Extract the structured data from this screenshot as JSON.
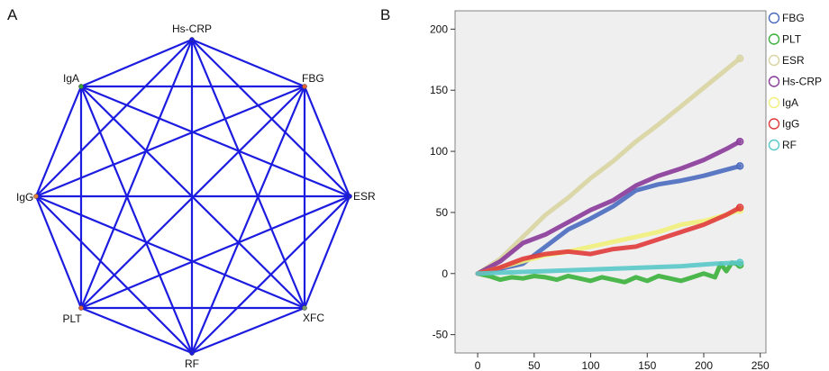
{
  "figure": {
    "panel_a_label": "A",
    "panel_b_label": "B"
  },
  "chart_data": [
    {
      "type": "network",
      "panel": "A",
      "edge_color": "#1c1ce0",
      "nodes": [
        {
          "id": "hscrp",
          "label": "Hs-CRP",
          "color": "#1c1ce0"
        },
        {
          "id": "fbg",
          "label": "FBG",
          "color": "#e0603a"
        },
        {
          "id": "esr",
          "label": "ESR",
          "color": "#1c1ce0"
        },
        {
          "id": "xfc",
          "label": "XFC",
          "color": "#7a9a6a"
        },
        {
          "id": "rf",
          "label": "RF",
          "color": "#1c1ce0"
        },
        {
          "id": "plt",
          "label": "PLT",
          "color": "#e0603a"
        },
        {
          "id": "igg",
          "label": "IgG",
          "color": "#e0803a"
        },
        {
          "id": "iga",
          "label": "IgA",
          "color": "#3aa03a"
        }
      ],
      "edges": [
        [
          "hscrp",
          "fbg"
        ],
        [
          "hscrp",
          "esr"
        ],
        [
          "hscrp",
          "xfc"
        ],
        [
          "hscrp",
          "rf"
        ],
        [
          "hscrp",
          "plt"
        ],
        [
          "hscrp",
          "igg"
        ],
        [
          "hscrp",
          "iga"
        ],
        [
          "fbg",
          "esr"
        ],
        [
          "fbg",
          "xfc"
        ],
        [
          "fbg",
          "rf"
        ],
        [
          "fbg",
          "plt"
        ],
        [
          "fbg",
          "igg"
        ],
        [
          "fbg",
          "iga"
        ],
        [
          "esr",
          "xfc"
        ],
        [
          "esr",
          "rf"
        ],
        [
          "esr",
          "plt"
        ],
        [
          "esr",
          "igg"
        ],
        [
          "esr",
          "iga"
        ],
        [
          "xfc",
          "rf"
        ],
        [
          "xfc",
          "plt"
        ],
        [
          "xfc",
          "igg"
        ],
        [
          "xfc",
          "iga"
        ],
        [
          "rf",
          "plt"
        ],
        [
          "rf",
          "igg"
        ],
        [
          "rf",
          "iga"
        ],
        [
          "plt",
          "igg"
        ],
        [
          "plt",
          "iga"
        ],
        [
          "igg",
          "iga"
        ]
      ]
    },
    {
      "type": "line",
      "panel": "B",
      "xlim": [
        -20,
        255
      ],
      "ylim": [
        -65,
        215
      ],
      "xticks": [
        0,
        50,
        100,
        150,
        200,
        250
      ],
      "yticks": [
        -50,
        0,
        50,
        100,
        150,
        200
      ],
      "background": "#efefef",
      "series": [
        {
          "name": "FBG",
          "color": "#4a6abf",
          "x": [
            0,
            20,
            40,
            60,
            80,
            100,
            120,
            140,
            160,
            180,
            200,
            220,
            232
          ],
          "y": [
            0,
            4,
            8,
            22,
            36,
            45,
            55,
            68,
            73,
            76,
            80,
            85,
            88
          ]
        },
        {
          "name": "PLT",
          "color": "#3ab03a",
          "x": [
            0,
            10,
            20,
            30,
            40,
            50,
            60,
            70,
            80,
            90,
            100,
            110,
            120,
            130,
            140,
            150,
            160,
            170,
            180,
            190,
            200,
            210,
            215,
            220,
            225,
            232
          ],
          "y": [
            0,
            -2,
            -5,
            -3,
            -4,
            -2,
            -3,
            -5,
            -2,
            -4,
            -6,
            -3,
            -5,
            -7,
            -3,
            -6,
            -2,
            -4,
            -6,
            -3,
            0,
            -3,
            8,
            2,
            9,
            7
          ]
        },
        {
          "name": "ESR",
          "color": "#d8d4a0",
          "x": [
            0,
            20,
            40,
            60,
            80,
            100,
            120,
            140,
            160,
            180,
            200,
            220,
            232
          ],
          "y": [
            0,
            12,
            30,
            48,
            62,
            78,
            92,
            108,
            122,
            137,
            152,
            167,
            176
          ]
        },
        {
          "name": "Hs-CRP",
          "color": "#8a3a9a",
          "x": [
            0,
            20,
            40,
            60,
            80,
            100,
            120,
            140,
            160,
            180,
            200,
            220,
            232
          ],
          "y": [
            0,
            10,
            25,
            32,
            42,
            52,
            60,
            72,
            80,
            86,
            93,
            102,
            108
          ]
        },
        {
          "name": "IgA",
          "color": "#f0f07a",
          "x": [
            0,
            20,
            40,
            60,
            80,
            100,
            120,
            140,
            160,
            180,
            200,
            220,
            232
          ],
          "y": [
            0,
            5,
            10,
            15,
            18,
            22,
            26,
            30,
            34,
            40,
            43,
            48,
            52
          ]
        },
        {
          "name": "IgG",
          "color": "#e03a3a",
          "x": [
            0,
            20,
            40,
            60,
            80,
            100,
            120,
            140,
            160,
            180,
            200,
            220,
            232
          ],
          "y": [
            0,
            5,
            12,
            16,
            18,
            16,
            20,
            22,
            28,
            34,
            40,
            48,
            54
          ]
        },
        {
          "name": "RF",
          "color": "#5ac8c8",
          "x": [
            0,
            30,
            60,
            90,
            120,
            150,
            180,
            210,
            232
          ],
          "y": [
            0,
            1,
            2,
            3,
            4,
            5,
            6,
            8,
            9
          ]
        }
      ]
    }
  ]
}
